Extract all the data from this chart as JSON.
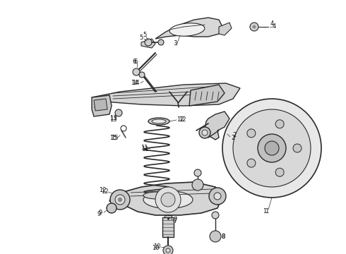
{
  "background_color": "#ffffff",
  "line_color": "#2a2a2a",
  "label_color": "#111111",
  "fig_width": 4.9,
  "fig_height": 3.6,
  "dpi": 100
}
